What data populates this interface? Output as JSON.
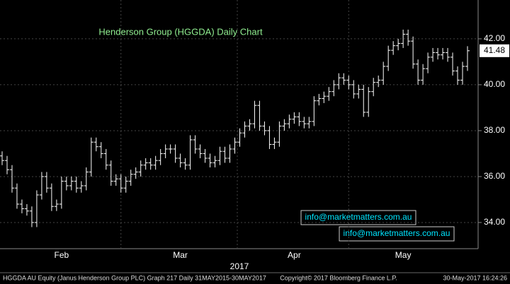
{
  "chart_data": {
    "type": "ohlc",
    "title": "Henderson Group (HGGDA) Daily Chart",
    "color": "#ffffff",
    "open": [
      36.9,
      36.7,
      36.3,
      35.5,
      34.8,
      34.6,
      34.5,
      34.0,
      35.2,
      36.0,
      35.5,
      34.7,
      34.8,
      35.8,
      35.6,
      35.8,
      35.5,
      35.6,
      36.2,
      37.5,
      37.3,
      37.0,
      36.5,
      35.8,
      35.9,
      35.5,
      35.8,
      36.1,
      36.2,
      36.5,
      36.6,
      36.5,
      36.7,
      37.0,
      37.2,
      37.2,
      36.8,
      36.6,
      36.5,
      37.6,
      37.2,
      37.0,
      36.8,
      36.6,
      36.7,
      37.1,
      36.8,
      37.2,
      37.5,
      37.9,
      38.2,
      38.3,
      39.1,
      38.2,
      38.0,
      37.4,
      37.5,
      38.2,
      38.3,
      38.5,
      38.6,
      38.4,
      38.3,
      38.4,
      39.3,
      39.4,
      39.5,
      39.7,
      40.0,
      40.3,
      40.2,
      40.0,
      39.6,
      39.8,
      38.8,
      39.7,
      40.1,
      40.2,
      40.8,
      41.5,
      41.7,
      41.8,
      42.2,
      41.9,
      40.9,
      40.2,
      40.7,
      41.2,
      41.4,
      41.3,
      41.4,
      41.2,
      40.6,
      40.2,
      40.8
    ],
    "high": [
      37.1,
      36.9,
      36.5,
      35.7,
      35.0,
      34.8,
      34.7,
      35.4,
      36.2,
      36.2,
      35.7,
      35.0,
      36.0,
      36.0,
      36.0,
      36.0,
      35.8,
      36.4,
      37.7,
      37.7,
      37.5,
      37.2,
      36.7,
      36.1,
      36.1,
      36.0,
      36.3,
      36.4,
      36.7,
      36.8,
      36.8,
      36.9,
      37.2,
      37.4,
      37.4,
      37.4,
      37.0,
      36.8,
      37.8,
      37.8,
      37.4,
      37.2,
      37.0,
      36.9,
      37.3,
      37.3,
      37.4,
      37.7,
      38.1,
      38.4,
      38.5,
      39.3,
      39.3,
      38.4,
      38.2,
      37.7,
      38.4,
      38.5,
      38.7,
      38.8,
      38.8,
      38.6,
      38.6,
      39.5,
      39.6,
      39.7,
      39.9,
      40.2,
      40.5,
      40.5,
      40.4,
      40.2,
      40.0,
      40.0,
      39.9,
      40.3,
      40.4,
      41.0,
      41.7,
      41.9,
      42.0,
      42.4,
      42.4,
      42.1,
      41.1,
      40.9,
      41.4,
      41.6,
      41.6,
      41.6,
      41.6,
      41.4,
      40.8,
      41.0,
      41.68
    ],
    "low": [
      36.5,
      36.1,
      35.3,
      34.6,
      34.4,
      34.3,
      33.8,
      33.8,
      35.0,
      35.3,
      34.5,
      34.5,
      34.6,
      35.4,
      35.4,
      35.3,
      35.3,
      35.4,
      36.0,
      37.1,
      36.8,
      36.3,
      35.6,
      35.6,
      35.3,
      35.3,
      35.6,
      35.9,
      36.0,
      36.3,
      36.3,
      36.3,
      36.5,
      36.8,
      37.0,
      36.6,
      36.4,
      36.3,
      36.3,
      37.0,
      36.8,
      36.6,
      36.4,
      36.4,
      36.5,
      36.6,
      36.6,
      37.0,
      37.3,
      37.7,
      38.0,
      38.1,
      38.0,
      37.8,
      37.2,
      37.2,
      37.3,
      38.0,
      38.1,
      38.3,
      38.2,
      38.1,
      38.1,
      38.2,
      39.1,
      39.2,
      39.3,
      39.5,
      39.8,
      40.0,
      39.8,
      39.4,
      39.4,
      38.6,
      38.6,
      39.5,
      39.9,
      40.0,
      40.6,
      41.3,
      41.5,
      41.6,
      41.7,
      40.7,
      40.0,
      40.0,
      40.5,
      41.0,
      41.1,
      41.1,
      41.0,
      40.4,
      40.0,
      40.0,
      40.6
    ],
    "close": [
      36.7,
      36.3,
      35.5,
      34.8,
      34.6,
      34.5,
      34.0,
      35.2,
      36.0,
      35.5,
      34.7,
      34.8,
      35.8,
      35.6,
      35.8,
      35.5,
      35.6,
      36.2,
      37.5,
      37.3,
      37.0,
      36.5,
      35.8,
      35.9,
      35.5,
      35.8,
      36.1,
      36.2,
      36.5,
      36.6,
      36.5,
      36.7,
      37.0,
      37.2,
      37.2,
      36.8,
      36.6,
      36.5,
      37.6,
      37.2,
      37.0,
      36.8,
      36.6,
      36.7,
      37.1,
      36.8,
      37.2,
      37.5,
      37.9,
      38.2,
      38.3,
      39.1,
      38.2,
      38.0,
      37.4,
      37.5,
      38.2,
      38.3,
      38.5,
      38.6,
      38.4,
      38.3,
      38.4,
      39.3,
      39.4,
      39.5,
      39.7,
      40.0,
      40.3,
      40.2,
      40.0,
      39.6,
      39.8,
      38.8,
      39.7,
      40.1,
      40.2,
      40.8,
      41.5,
      41.7,
      41.8,
      42.2,
      41.9,
      40.9,
      40.2,
      40.7,
      41.2,
      41.4,
      41.3,
      41.4,
      41.2,
      40.6,
      40.2,
      40.8,
      41.48
    ],
    "ylim": [
      32.86,
      43.69
    ],
    "yticks": [
      {
        "value": 34,
        "label": "34.00"
      },
      {
        "value": 36,
        "label": "36.00"
      },
      {
        "value": 38,
        "label": "38.00"
      },
      {
        "value": 40,
        "label": "40.00"
      },
      {
        "value": 42,
        "label": "42.00"
      }
    ],
    "xticks": [
      {
        "value": 12,
        "label": "Feb"
      },
      {
        "value": 36,
        "label": "Mar"
      },
      {
        "value": 59,
        "label": "Apr"
      },
      {
        "value": 81,
        "label": "May"
      }
    ],
    "x_title": "2017",
    "annotations": [
      "info@marketmatters.com.au",
      "info@marketmatters.com.au"
    ]
  },
  "footer": {
    "left": "HGGDA AU Equity (Janus Henderson Group PLC) Graph 217  Daily 31MAY2015-30MAY2017",
    "copyright": "Copyright© 2017 Bloomberg Finance L.P.",
    "timestamp": "30-May-2017 16:24:26"
  }
}
